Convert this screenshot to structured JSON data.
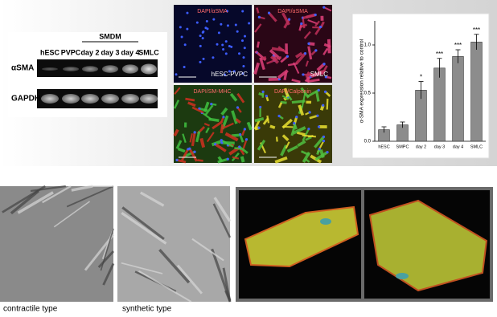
{
  "gel": {
    "group_label": "SMDM",
    "lanes": [
      "hESC",
      "PVPC",
      "day 2",
      "day 3",
      "day 4",
      "SMLC"
    ],
    "rows": [
      "αSMA",
      "GAPDH"
    ]
  },
  "micrographs": [
    {
      "stain": "DAPI/αSMA",
      "label": "hESC-PVPC"
    },
    {
      "stain": "DAPI/αSMA",
      "label": "SMLC"
    },
    {
      "stain": "DAPI/SM-MHC",
      "label": null
    },
    {
      "stain": "DAPI/Calponin",
      "label": null
    }
  ],
  "chart_data": {
    "type": "bar",
    "y_label": "α-SMA expression relative to control",
    "categories": [
      "hESC",
      "SMPC",
      "day 2",
      "day 3",
      "day 4",
      "SMLC"
    ],
    "values": [
      0.12,
      0.17,
      0.53,
      0.76,
      0.88,
      1.03
    ],
    "errors": [
      0.03,
      0.03,
      0.09,
      0.1,
      0.07,
      0.08
    ],
    "significance": [
      null,
      null,
      "*",
      "***",
      "***",
      "***"
    ],
    "color": "#8c8c8c",
    "ylim": [
      0,
      1.25
    ],
    "yticks": [
      {
        "value": 0,
        "label": "0.0"
      },
      {
        "value": 0.5,
        "label": "0.5"
      },
      {
        "value": 1,
        "label": "1.0"
      }
    ]
  },
  "captions": [
    "contractile type",
    "synthetic type"
  ]
}
